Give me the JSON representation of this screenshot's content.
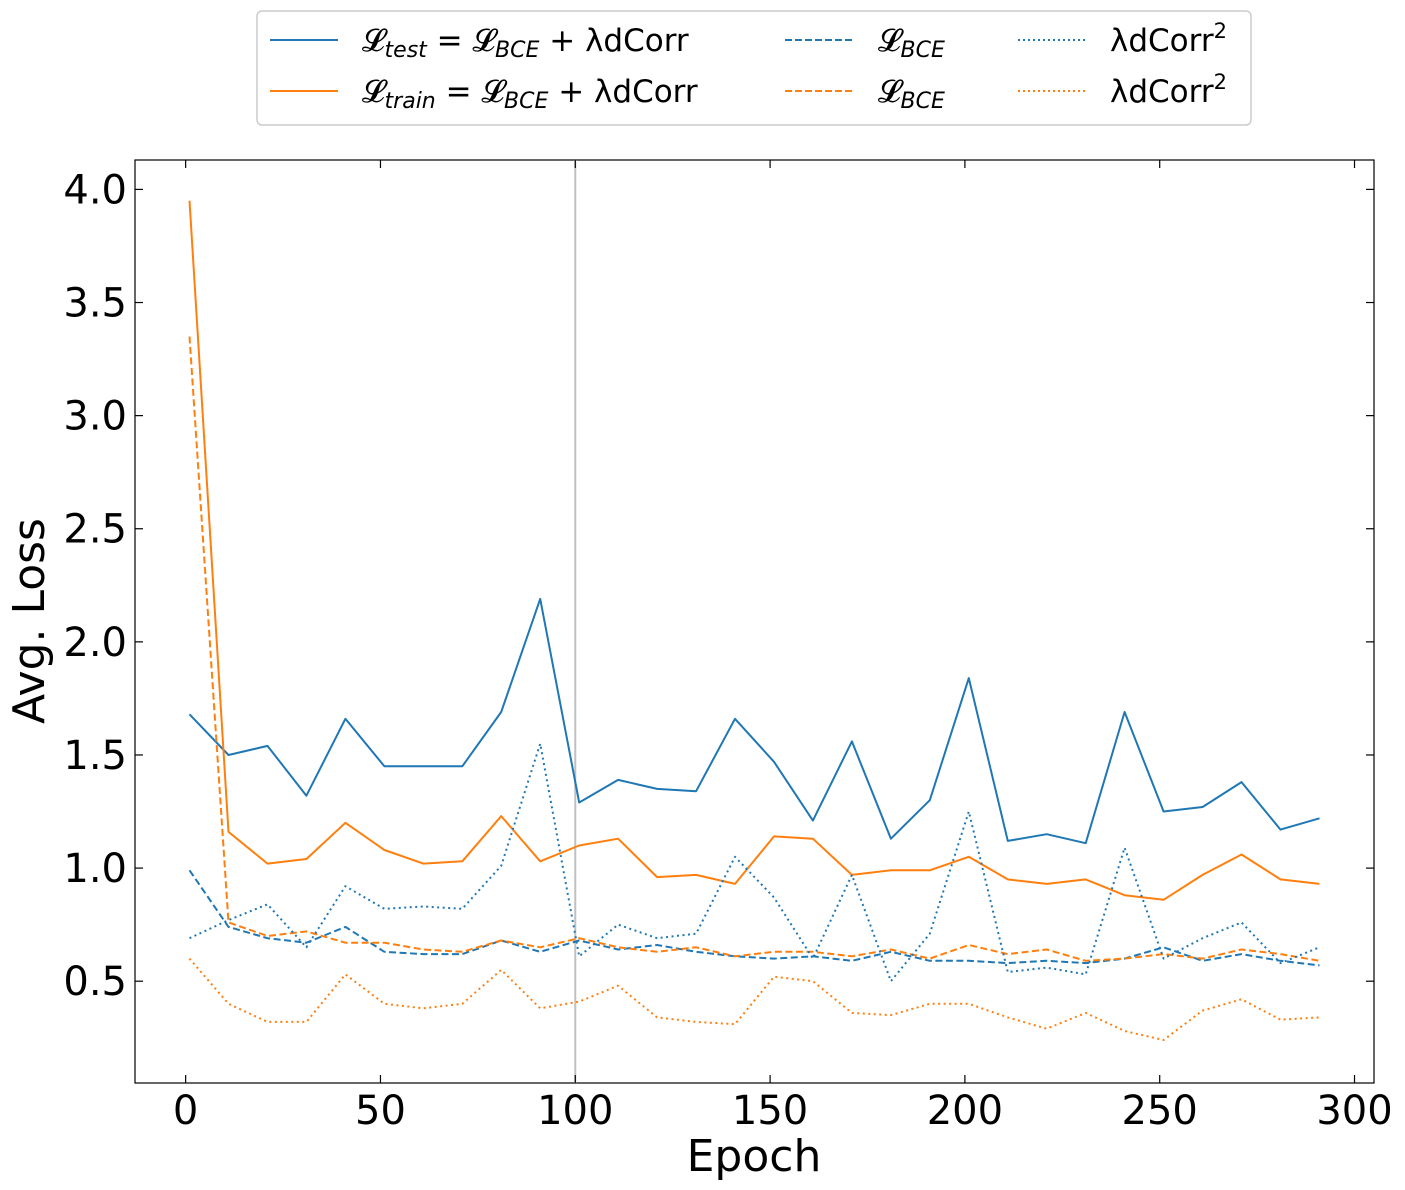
{
  "chart_data": {
    "type": "line",
    "xlabel": "Epoch",
    "ylabel": "Avg. Loss",
    "xlim": [
      -13,
      305
    ],
    "ylim": [
      0.05,
      4.13
    ],
    "xticks": [
      0,
      50,
      100,
      150,
      200,
      250,
      300
    ],
    "yticks": [
      0.5,
      1.0,
      1.5,
      2.0,
      2.5,
      3.0,
      3.5,
      4.0
    ],
    "xtick_labels": [
      "0",
      "50",
      "100",
      "150",
      "200",
      "250",
      "300"
    ],
    "ytick_labels": [
      "0.5",
      "1.0",
      "1.5",
      "2.0",
      "2.5",
      "3.0",
      "3.5",
      "4.0"
    ],
    "grid": false,
    "legend_placement": "top-center, above plot",
    "vertical_line": {
      "x": 100,
      "color": "#c0c0c0"
    },
    "x": [
      1,
      11,
      21,
      31,
      41,
      51,
      61,
      71,
      81,
      91,
      101,
      111,
      121,
      131,
      141,
      151,
      161,
      171,
      181,
      191,
      201,
      211,
      221,
      231,
      241,
      251,
      261,
      271,
      281,
      291
    ],
    "series": [
      {
        "key": "test_total",
        "name": "𝓛test = 𝓛BCE + λdCorr",
        "color": "#1f77b4",
        "style": "solid",
        "values": [
          1.68,
          1.5,
          1.54,
          1.32,
          1.66,
          1.45,
          1.45,
          1.45,
          1.69,
          2.19,
          1.29,
          1.39,
          1.35,
          1.34,
          1.66,
          1.47,
          1.21,
          1.56,
          1.13,
          1.3,
          1.84,
          1.12,
          1.15,
          1.11,
          1.69,
          1.25,
          1.27,
          1.38,
          1.17,
          1.22
        ]
      },
      {
        "key": "train_total",
        "name": "𝓛train = 𝓛BCE + λdCorr",
        "color": "#ff7f0e",
        "style": "solid",
        "values": [
          3.95,
          1.16,
          1.02,
          1.04,
          1.2,
          1.08,
          1.02,
          1.03,
          1.23,
          1.03,
          1.1,
          1.13,
          0.96,
          0.97,
          0.93,
          1.14,
          1.13,
          0.97,
          0.99,
          0.99,
          1.05,
          0.95,
          0.93,
          0.95,
          0.88,
          0.86,
          0.97,
          1.06,
          0.95,
          0.93
        ]
      },
      {
        "key": "test_bce",
        "name": "𝓛BCE",
        "color": "#1f77b4",
        "style": "dashed",
        "values": [
          0.99,
          0.74,
          0.69,
          0.67,
          0.74,
          0.63,
          0.62,
          0.62,
          0.68,
          0.63,
          0.68,
          0.64,
          0.66,
          0.63,
          0.61,
          0.6,
          0.61,
          0.59,
          0.63,
          0.59,
          0.59,
          0.58,
          0.59,
          0.58,
          0.6,
          0.65,
          0.59,
          0.62,
          0.59,
          0.57
        ]
      },
      {
        "key": "train_bce",
        "name": "𝓛BCE",
        "color": "#ff7f0e",
        "style": "dashed",
        "values": [
          3.35,
          0.76,
          0.7,
          0.72,
          0.67,
          0.67,
          0.64,
          0.63,
          0.68,
          0.65,
          0.69,
          0.65,
          0.63,
          0.65,
          0.61,
          0.63,
          0.63,
          0.61,
          0.64,
          0.6,
          0.66,
          0.62,
          0.64,
          0.59,
          0.6,
          0.62,
          0.6,
          0.64,
          0.62,
          0.59
        ]
      },
      {
        "key": "test_dcorr",
        "name": "λdCorr²",
        "color": "#1f77b4",
        "style": "dotted",
        "values": [
          0.69,
          0.77,
          0.84,
          0.65,
          0.92,
          0.82,
          0.83,
          0.82,
          1.01,
          1.55,
          0.61,
          0.75,
          0.69,
          0.71,
          1.05,
          0.87,
          0.6,
          0.97,
          0.5,
          0.71,
          1.25,
          0.54,
          0.56,
          0.53,
          1.09,
          0.6,
          0.69,
          0.76,
          0.58,
          0.65
        ]
      },
      {
        "key": "train_dcorr",
        "name": "λdCorr²",
        "color": "#ff7f0e",
        "style": "dotted",
        "values": [
          0.6,
          0.4,
          0.32,
          0.32,
          0.53,
          0.4,
          0.38,
          0.4,
          0.55,
          0.38,
          0.41,
          0.48,
          0.34,
          0.32,
          0.31,
          0.52,
          0.5,
          0.36,
          0.35,
          0.4,
          0.4,
          0.34,
          0.29,
          0.36,
          0.28,
          0.24,
          0.37,
          0.42,
          0.33,
          0.34
        ]
      }
    ]
  },
  "legend": {
    "test_total": {
      "lhs_sym": "𝓛",
      "lhs_sub": "test",
      "eq": " = ",
      "bce_sym": "𝓛",
      "bce_sub": "BCE",
      "rest": " + λdCorr"
    },
    "train_total": {
      "lhs_sym": "𝓛",
      "lhs_sub": "train",
      "eq": " = ",
      "bce_sym": "𝓛",
      "bce_sub": "BCE",
      "rest": " + λdCorr"
    },
    "test_bce": {
      "sym": "𝓛",
      "sub": "BCE"
    },
    "train_bce": {
      "sym": "𝓛",
      "sub": "BCE"
    },
    "test_dcorr": {
      "base": "λdCorr",
      "sup": "2"
    },
    "train_dcorr": {
      "base": "λdCorr",
      "sup": "2"
    }
  }
}
